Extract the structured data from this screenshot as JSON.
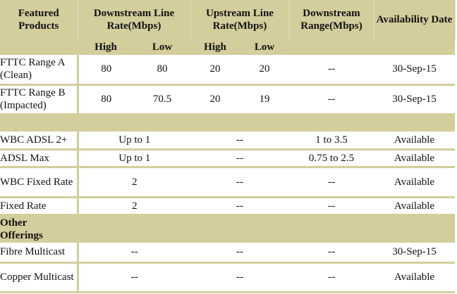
{
  "table": {
    "header": [
      "Featured Products",
      "Downstream Line Rate(Mbps)",
      "Upstream Line Rate(Mbps)",
      "Downstream Range(Mbps)",
      "Availability Date"
    ],
    "subheader": [
      "High",
      "Low",
      "High",
      "Low"
    ],
    "fttc_rows": [
      [
        "FTTC Range A (Clean)",
        "80",
        "80",
        "20",
        "20",
        "--",
        "30-Sep-15"
      ],
      [
        "FTTC Range B (Impacted)",
        "80",
        "70.5",
        "20",
        "19",
        "--",
        "30-Sep-15"
      ]
    ],
    "wbc_rows": [
      [
        "WBC ADSL 2+",
        "Up to 1",
        "--",
        "1 to 3.5",
        "Available"
      ],
      [
        "ADSL Max",
        "Up to 1",
        "--",
        "0.75 to 2.5",
        "Available"
      ],
      [
        "WBC Fixed Rate",
        "2",
        "--",
        "--",
        "Available"
      ],
      [
        "Fixed Rate",
        "2",
        "--",
        "--",
        "Available"
      ]
    ],
    "other_label": "Other Offerings",
    "other_rows": [
      [
        "Fibre Multicast",
        "--",
        "--",
        "--",
        "30-Sep-15"
      ],
      [
        "Copper Multicast",
        "--",
        "--",
        "--",
        "Available"
      ]
    ]
  }
}
